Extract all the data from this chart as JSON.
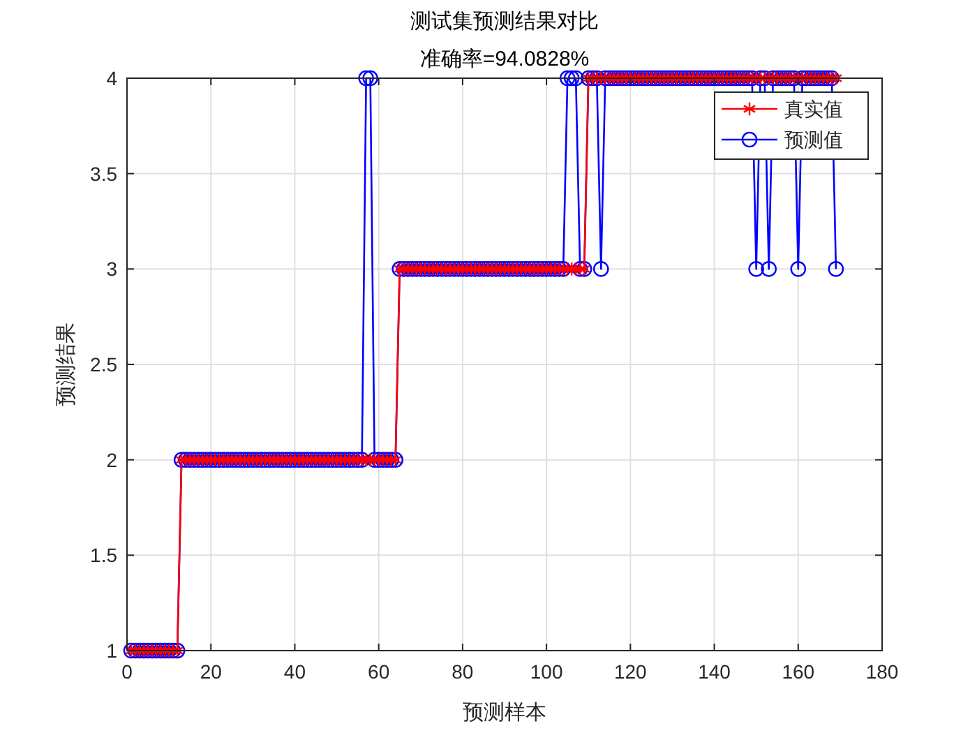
{
  "chart_data": {
    "type": "line",
    "title": "测试集预测结果对比",
    "subtitle": "准确率=94.0828%",
    "xlabel": "预测样本",
    "ylabel": "预测结果",
    "x": [
      1,
      2,
      3,
      4,
      5,
      6,
      7,
      8,
      9,
      10,
      11,
      12,
      13,
      14,
      15,
      16,
      17,
      18,
      19,
      20,
      21,
      22,
      23,
      24,
      25,
      26,
      27,
      28,
      29,
      30,
      31,
      32,
      33,
      34,
      35,
      36,
      37,
      38,
      39,
      40,
      41,
      42,
      43,
      44,
      45,
      46,
      47,
      48,
      49,
      50,
      51,
      52,
      53,
      54,
      55,
      56,
      57,
      58,
      59,
      60,
      61,
      62,
      63,
      64,
      65,
      66,
      67,
      68,
      69,
      70,
      71,
      72,
      73,
      74,
      75,
      76,
      77,
      78,
      79,
      80,
      81,
      82,
      83,
      84,
      85,
      86,
      87,
      88,
      89,
      90,
      91,
      92,
      93,
      94,
      95,
      96,
      97,
      98,
      99,
      100,
      101,
      102,
      103,
      104,
      105,
      106,
      107,
      108,
      109,
      110,
      111,
      112,
      113,
      114,
      115,
      116,
      117,
      118,
      119,
      120,
      121,
      122,
      123,
      124,
      125,
      126,
      127,
      128,
      129,
      130,
      131,
      132,
      133,
      134,
      135,
      136,
      137,
      138,
      139,
      140,
      141,
      142,
      143,
      144,
      145,
      146,
      147,
      148,
      149,
      150,
      151,
      152,
      153,
      154,
      155,
      156,
      157,
      158,
      159,
      160,
      161,
      162,
      163,
      164,
      165,
      166,
      167,
      168,
      169
    ],
    "series": [
      {
        "name": "真实值",
        "color": "#ff0000",
        "marker": "cross",
        "values": [
          1,
          1,
          1,
          1,
          1,
          1,
          1,
          1,
          1,
          1,
          1,
          1,
          2,
          2,
          2,
          2,
          2,
          2,
          2,
          2,
          2,
          2,
          2,
          2,
          2,
          2,
          2,
          2,
          2,
          2,
          2,
          2,
          2,
          2,
          2,
          2,
          2,
          2,
          2,
          2,
          2,
          2,
          2,
          2,
          2,
          2,
          2,
          2,
          2,
          2,
          2,
          2,
          2,
          2,
          2,
          2,
          2,
          2,
          2,
          2,
          2,
          2,
          2,
          2,
          3,
          3,
          3,
          3,
          3,
          3,
          3,
          3,
          3,
          3,
          3,
          3,
          3,
          3,
          3,
          3,
          3,
          3,
          3,
          3,
          3,
          3,
          3,
          3,
          3,
          3,
          3,
          3,
          3,
          3,
          3,
          3,
          3,
          3,
          3,
          3,
          3,
          3,
          3,
          3,
          3,
          3,
          3,
          3,
          3,
          4,
          4,
          4,
          4,
          4,
          4,
          4,
          4,
          4,
          4,
          4,
          4,
          4,
          4,
          4,
          4,
          4,
          4,
          4,
          4,
          4,
          4,
          4,
          4,
          4,
          4,
          4,
          4,
          4,
          4,
          4,
          4,
          4,
          4,
          4,
          4,
          4,
          4,
          4,
          4,
          4,
          4,
          4,
          4,
          4,
          4,
          4,
          4,
          4,
          4,
          4,
          4,
          4,
          4,
          4,
          4,
          4,
          4,
          4,
          4
        ]
      },
      {
        "name": "预测值",
        "color": "#0000ff",
        "marker": "circle",
        "values": [
          1,
          1,
          1,
          1,
          1,
          1,
          1,
          1,
          1,
          1,
          1,
          1,
          2,
          2,
          2,
          2,
          2,
          2,
          2,
          2,
          2,
          2,
          2,
          2,
          2,
          2,
          2,
          2,
          2,
          2,
          2,
          2,
          2,
          2,
          2,
          2,
          2,
          2,
          2,
          2,
          2,
          2,
          2,
          2,
          2,
          2,
          2,
          2,
          2,
          2,
          2,
          2,
          2,
          2,
          2,
          2,
          4,
          4,
          2,
          2,
          2,
          2,
          2,
          2,
          3,
          3,
          3,
          3,
          3,
          3,
          3,
          3,
          3,
          3,
          3,
          3,
          3,
          3,
          3,
          3,
          3,
          3,
          3,
          3,
          3,
          3,
          3,
          3,
          3,
          3,
          3,
          3,
          3,
          3,
          3,
          3,
          3,
          3,
          3,
          3,
          3,
          3,
          3,
          3,
          4,
          4,
          4,
          3,
          3,
          4,
          4,
          4,
          3,
          4,
          4,
          4,
          4,
          4,
          4,
          4,
          4,
          4,
          4,
          4,
          4,
          4,
          4,
          4,
          4,
          4,
          4,
          4,
          4,
          4,
          4,
          4,
          4,
          4,
          4,
          4,
          4,
          4,
          4,
          4,
          4,
          4,
          4,
          4,
          4,
          3,
          4,
          4,
          3,
          4,
          4,
          4,
          4,
          4,
          4,
          3,
          4,
          4,
          4,
          4,
          4,
          4,
          4,
          4,
          3
        ]
      }
    ],
    "xlim": [
      0,
      180
    ],
    "xticks": [
      0,
      20,
      40,
      60,
      80,
      100,
      120,
      140,
      160,
      180
    ],
    "ylim": [
      1,
      4
    ],
    "yticks": [
      1,
      1.5,
      2,
      2.5,
      3,
      3.5,
      4
    ],
    "grid": true,
    "legend": "top right",
    "line_style": "solid"
  }
}
